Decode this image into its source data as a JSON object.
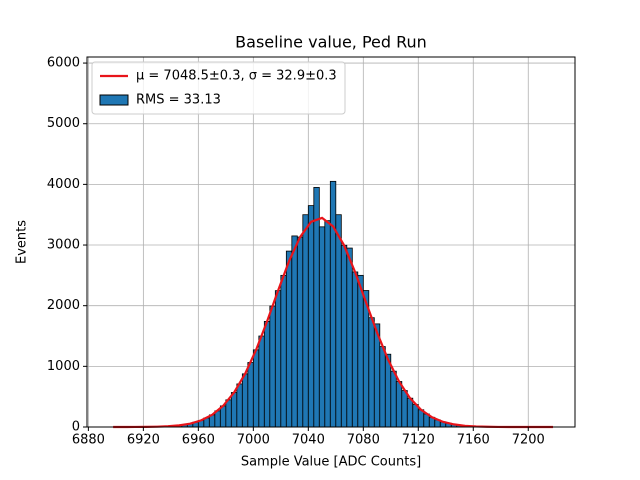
{
  "chart_data": {
    "type": "histogram",
    "title": "Baseline value, Ped Run",
    "xlabel": "Sample Value [ADC Counts]",
    "ylabel": "Events",
    "bins": [
      6896,
      6900,
      6904,
      6908,
      6912,
      6916,
      6920,
      6924,
      6928,
      6932,
      6936,
      6940,
      6944,
      6948,
      6952,
      6956,
      6960,
      6964,
      6968,
      6972,
      6976,
      6980,
      6984,
      6988,
      6992,
      6996,
      7000,
      7004,
      7008,
      7012,
      7016,
      7020,
      7024,
      7028,
      7032,
      7036,
      7040,
      7044,
      7048,
      7052,
      7056,
      7060,
      7064,
      7068,
      7072,
      7076,
      7080,
      7084,
      7088,
      7092,
      7096,
      7100,
      7104,
      7108,
      7112,
      7116,
      7120,
      7124,
      7128,
      7132,
      7136,
      7140,
      7144,
      7148,
      7152,
      7156,
      7160,
      7164,
      7168,
      7172,
      7176,
      7180,
      7184,
      7188,
      7192,
      7196,
      7200,
      7204,
      7208,
      7212,
      7216,
      7220,
      7224
    ],
    "series": [
      {
        "name": "μ = 7048.5±0.3, σ = 32.9±0.3",
        "type": "line",
        "color": "#e8141a",
        "x": [
          6898,
          6906,
          6914,
          6922,
          6930,
          6938,
          6946,
          6954,
          6962,
          6970,
          6978,
          6986,
          6994,
          7002,
          7010,
          7018,
          7026,
          7034,
          7042,
          7050,
          7058,
          7066,
          7074,
          7082,
          7090,
          7098,
          7106,
          7114,
          7122,
          7130,
          7138,
          7146,
          7154,
          7162,
          7170,
          7178,
          7186,
          7194,
          7202,
          7210,
          7218
        ],
        "values": [
          0,
          0,
          1,
          2,
          5,
          12,
          27,
          55,
          109,
          200,
          348,
          569,
          876,
          1272,
          1741,
          2248,
          2735,
          3131,
          3383,
          3447,
          3308,
          2996,
          2556,
          2052,
          1558,
          1113,
          750,
          475,
          284,
          160,
          85,
          43,
          20,
          9,
          4,
          1,
          0,
          0,
          0,
          0,
          0
        ]
      },
      {
        "name": "RMS = 33.13",
        "type": "histogram",
        "color": "#1f77b4",
        "edgecolor": "#000000",
        "values": [
          0,
          0,
          0,
          0,
          1,
          1,
          2,
          3,
          5,
          8,
          12,
          18,
          27,
          39,
          55,
          79,
          109,
          149,
          200,
          266,
          348,
          448,
          569,
          710,
          876,
          1063,
          1272,
          1500,
          1741,
          1994,
          2248,
          2500,
          2900,
          3150,
          3131,
          3500,
          3650,
          3950,
          3300,
          3402,
          4050,
          3500,
          2996,
          2950,
          2556,
          2500,
          2250,
          1802,
          1700,
          1326,
          1200,
          920,
          750,
          601,
          475,
          371,
          284,
          215,
          160,
          118,
          85,
          61,
          43,
          30,
          20,
          14,
          9,
          6,
          4,
          2,
          1,
          0,
          0,
          0,
          0,
          0,
          0,
          0,
          0,
          0,
          0,
          0
        ]
      }
    ],
    "xlim": [
      6879,
      7234
    ],
    "ylim": [
      0,
      6100
    ],
    "xticks": [
      6880,
      6920,
      6960,
      7000,
      7040,
      7080,
      7120,
      7160,
      7200
    ],
    "yticks": [
      0,
      1000,
      2000,
      3000,
      4000,
      5000,
      6000
    ],
    "grid": true,
    "legend": "upper left"
  }
}
